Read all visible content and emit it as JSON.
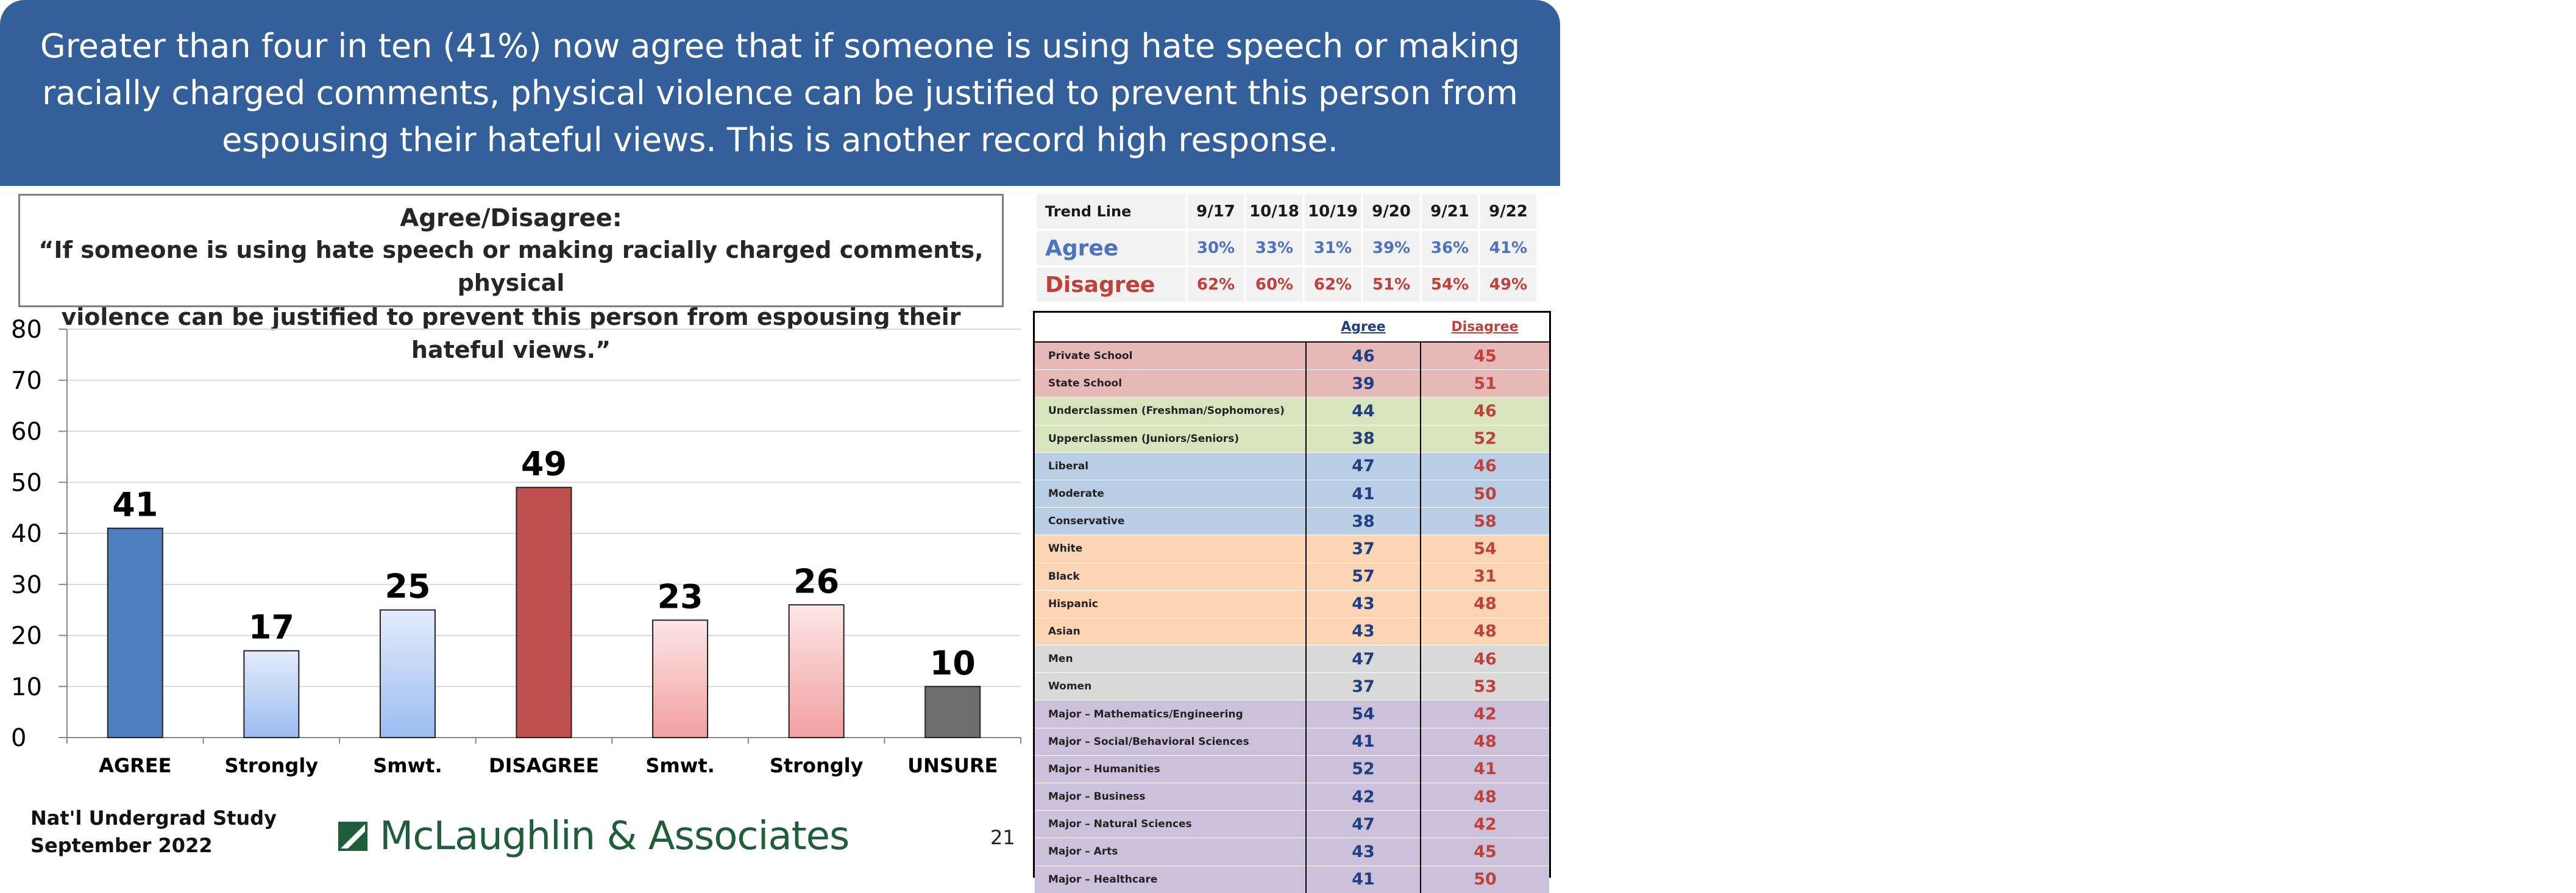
{
  "banner": {
    "lines": [
      "Greater than four in ten (41%) now agree that if someone is using hate speech or making",
      "racially charged comments, physical violence can be justified to prevent this person from",
      "espousing their hateful views. This is another record high response."
    ]
  },
  "question": {
    "title": "Agree/Disagree:",
    "line1": "“If someone is using hate speech or making racially charged comments, physical",
    "line2": "violence can be justified to prevent this person from espousing their hateful views.”"
  },
  "chart_data": {
    "type": "bar",
    "categories": [
      "AGREE",
      "Strongly",
      "Smwt.",
      "DISAGREE",
      "Smwt.",
      "Strongly",
      "UNSURE"
    ],
    "values": [
      41,
      17,
      25,
      49,
      23,
      26,
      10
    ],
    "data_labels": [
      "41",
      "17",
      "25",
      "49",
      "23",
      "26",
      "10"
    ],
    "bar_colors": [
      "#4f7fbf",
      "#bcd3f7",
      "#bcd3f7",
      "#c0504d",
      "#f8c6c6",
      "#f8c6c6",
      "#6e6e6e"
    ],
    "ylim": [
      0,
      80
    ],
    "yticks": [
      "0",
      "10",
      "20",
      "30",
      "40",
      "50",
      "60",
      "70",
      "80"
    ],
    "grid": true,
    "xlabel": "",
    "ylabel": "",
    "title": ""
  },
  "footer": {
    "study_line1": "Nat'l Undergrad Study",
    "study_line2": "September 2022",
    "logo_text": "McLaughlin & Associates",
    "page_number": "21"
  },
  "trend": {
    "header_label": "Trend Line",
    "dates": [
      "9/17",
      "10/18",
      "10/19",
      "9/20",
      "9/21",
      "9/22"
    ],
    "agree_label": "Agree",
    "agree_values": [
      "30%",
      "33%",
      "31%",
      "39%",
      "36%",
      "41%"
    ],
    "disagree_label": "Disagree",
    "disagree_values": [
      "62%",
      "60%",
      "62%",
      "51%",
      "54%",
      "49%"
    ]
  },
  "demographics": {
    "col_agree": "Agree",
    "col_disagree": "Disagree",
    "group_colors": {
      "school": "#e6b9b8",
      "class": "#d7e4bd",
      "ideology": "#b9cde5",
      "race": "#fcd5b5",
      "gender": "#d9d9d9",
      "major": "#ccc1da"
    },
    "rows": [
      {
        "label": "Private School",
        "agree": "46",
        "disagree": "45",
        "group": "school"
      },
      {
        "label": "State School",
        "agree": "39",
        "disagree": "51",
        "group": "school"
      },
      {
        "label": "Underclassmen (Freshman/Sophomores)",
        "agree": "44",
        "disagree": "46",
        "group": "class"
      },
      {
        "label": "Upperclassmen (Juniors/Seniors)",
        "agree": "38",
        "disagree": "52",
        "group": "class"
      },
      {
        "label": "Liberal",
        "agree": "47",
        "disagree": "46",
        "group": "ideology"
      },
      {
        "label": "Moderate",
        "agree": "41",
        "disagree": "50",
        "group": "ideology"
      },
      {
        "label": "Conservative",
        "agree": "38",
        "disagree": "58",
        "group": "ideology"
      },
      {
        "label": "White",
        "agree": "37",
        "disagree": "54",
        "group": "race"
      },
      {
        "label": "Black",
        "agree": "57",
        "disagree": "31",
        "group": "race"
      },
      {
        "label": "Hispanic",
        "agree": "43",
        "disagree": "48",
        "group": "race"
      },
      {
        "label": "Asian",
        "agree": "43",
        "disagree": "48",
        "group": "race"
      },
      {
        "label": "Men",
        "agree": "47",
        "disagree": "46",
        "group": "gender"
      },
      {
        "label": "Women",
        "agree": "37",
        "disagree": "53",
        "group": "gender"
      },
      {
        "label": "Major – Mathematics/Engineering",
        "agree": "54",
        "disagree": "42",
        "group": "major"
      },
      {
        "label": "Major – Social/Behavioral Sciences",
        "agree": "41",
        "disagree": "48",
        "group": "major"
      },
      {
        "label": "Major – Humanities",
        "agree": "52",
        "disagree": "41",
        "group": "major"
      },
      {
        "label": "Major – Business",
        "agree": "42",
        "disagree": "48",
        "group": "major"
      },
      {
        "label": "Major – Natural Sciences",
        "agree": "47",
        "disagree": "42",
        "group": "major"
      },
      {
        "label": "Major – Arts",
        "agree": "43",
        "disagree": "45",
        "group": "major"
      },
      {
        "label": "Major – Healthcare",
        "agree": "41",
        "disagree": "50",
        "group": "major"
      }
    ]
  }
}
